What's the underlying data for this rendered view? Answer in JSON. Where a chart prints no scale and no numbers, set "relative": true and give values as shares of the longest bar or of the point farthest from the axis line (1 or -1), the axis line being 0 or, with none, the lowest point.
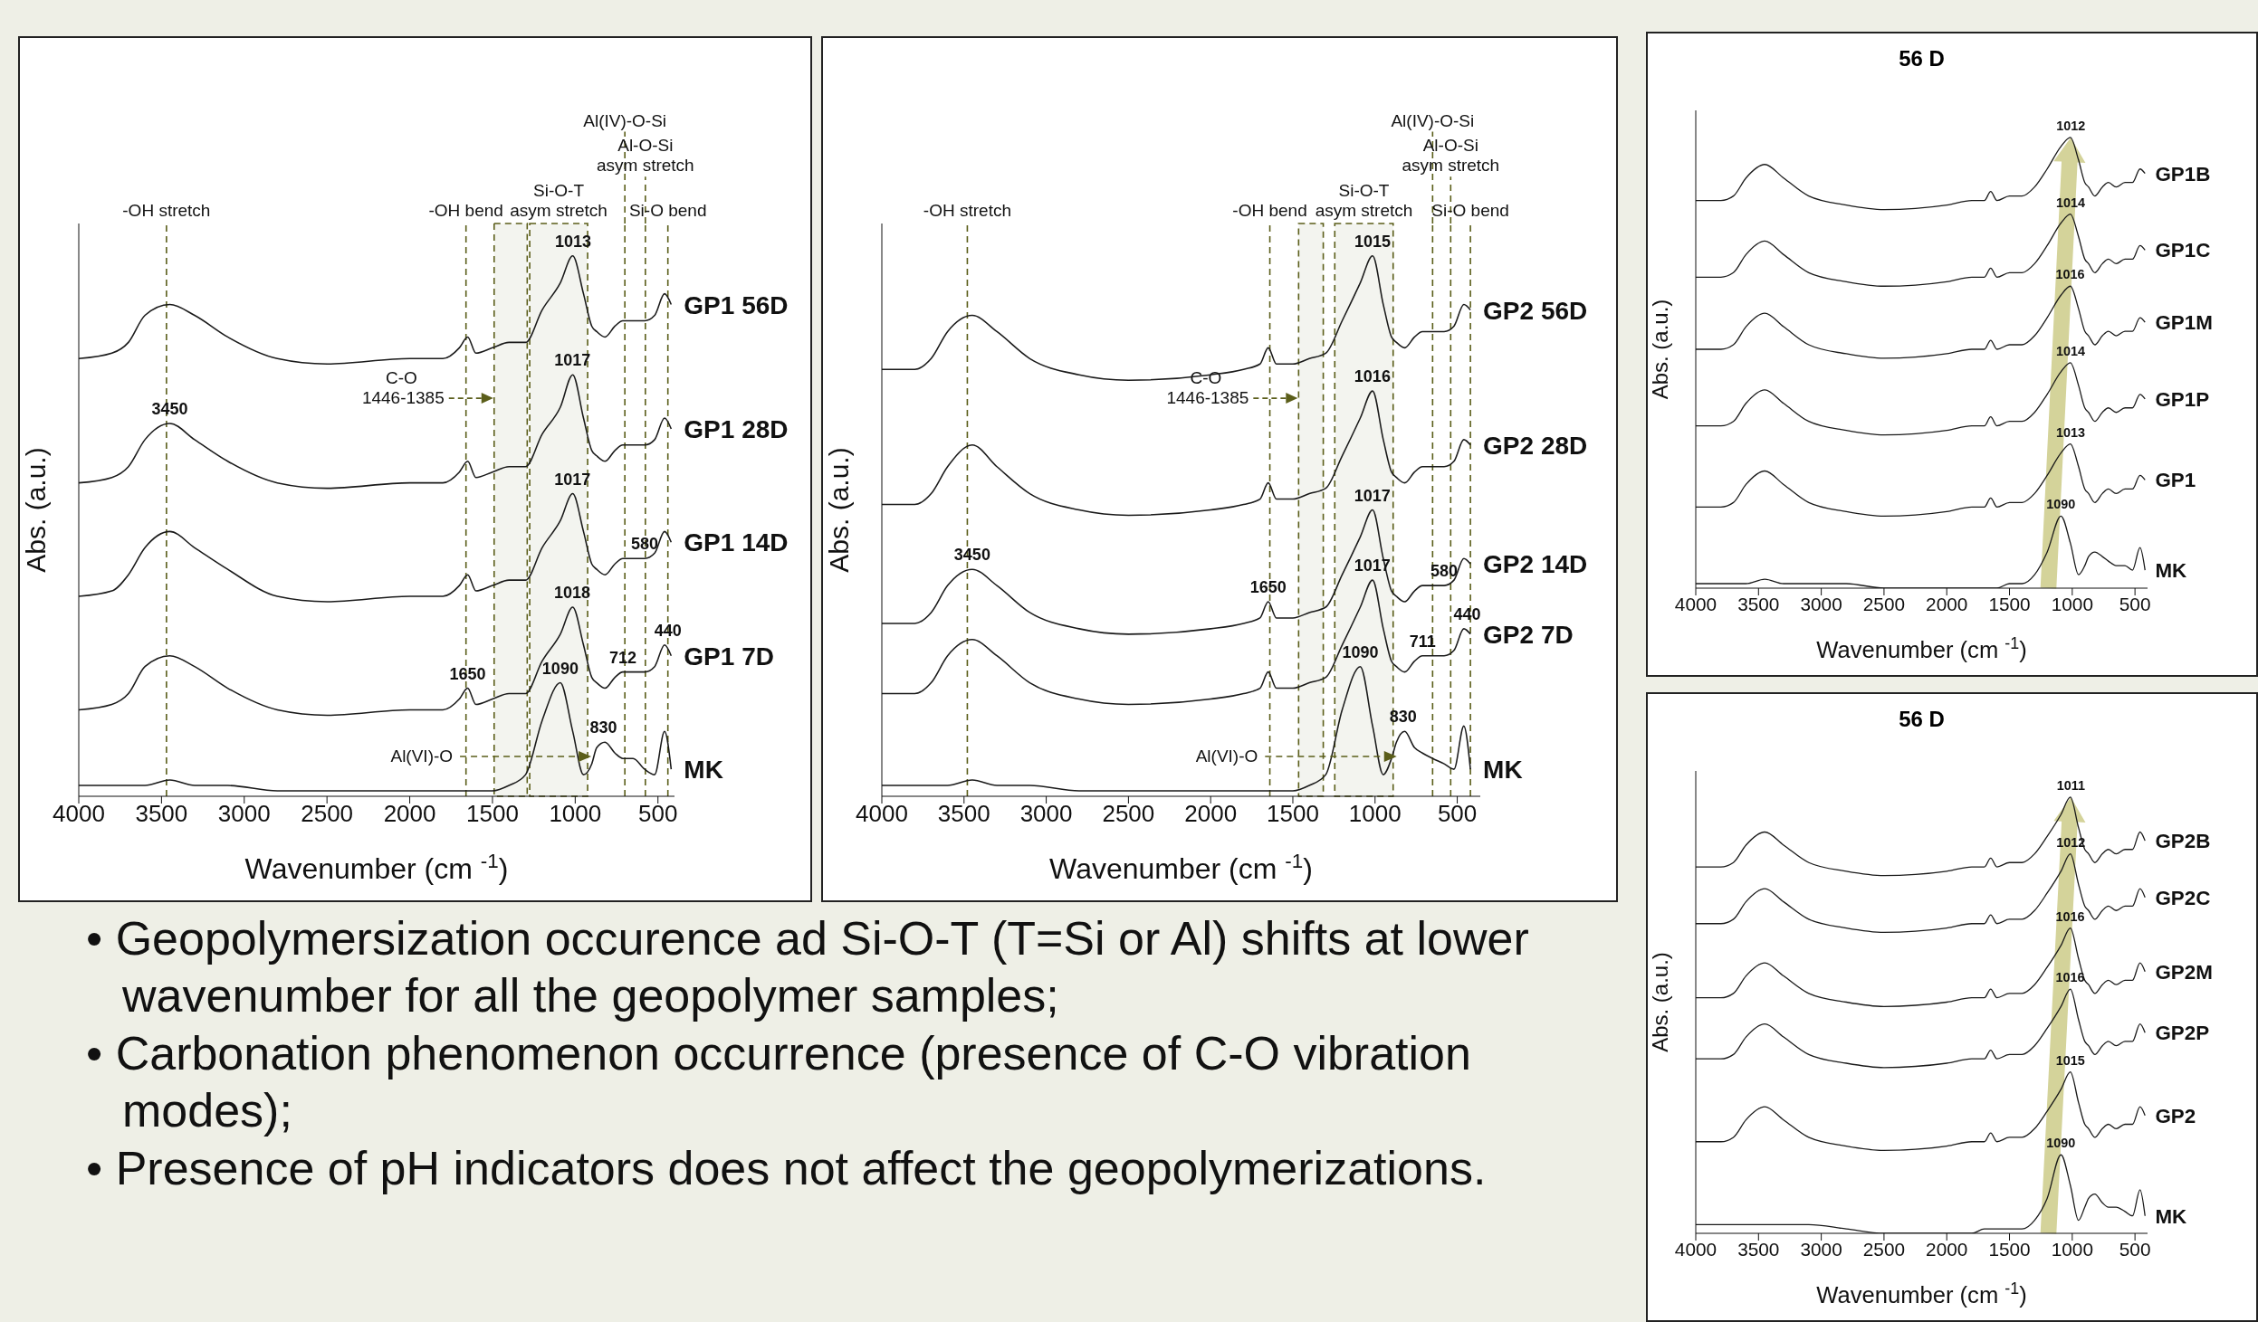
{
  "chart_data": [
    {
      "type": "line",
      "relative": true,
      "xlabel": "Wavenumber (cm $^{-1}$)",
      "ylabel": "Abs. (a.u.)",
      "xlim": [
        4000,
        400
      ],
      "xticks": [
        4000,
        3500,
        3000,
        2500,
        2000,
        1500,
        1000,
        500
      ],
      "x": [
        4000,
        3800,
        3700,
        3600,
        3450,
        3300,
        3100,
        2800,
        2500,
        2000,
        1800,
        1700,
        1650,
        1600,
        1500,
        1400,
        1300,
        1200,
        1090,
        1015,
        950,
        900,
        870,
        820,
        760,
        712,
        650,
        580,
        520,
        460,
        420
      ],
      "series": [
        {
          "name": "GP1 56D",
          "color": "#1a1a1a",
          "values": [
            0.81,
            0.82,
            0.84,
            0.89,
            0.91,
            0.89,
            0.85,
            0.81,
            0.8,
            0.81,
            0.81,
            0.83,
            0.85,
            0.82,
            0.83,
            0.84,
            0.84,
            0.9,
            0.95,
            1.0,
            0.93,
            0.87,
            0.86,
            0.85,
            0.87,
            0.88,
            0.88,
            0.88,
            0.89,
            0.93,
            0.91
          ]
        },
        {
          "name": "GP1 28D",
          "color": "#1a1a1a",
          "values": [
            0.58,
            0.59,
            0.61,
            0.66,
            0.69,
            0.66,
            0.62,
            0.58,
            0.57,
            0.58,
            0.58,
            0.6,
            0.62,
            0.59,
            0.6,
            0.61,
            0.61,
            0.67,
            0.72,
            0.78,
            0.7,
            0.64,
            0.63,
            0.62,
            0.64,
            0.65,
            0.65,
            0.65,
            0.66,
            0.7,
            0.68
          ]
        },
        {
          "name": "GP1 14D",
          "color": "#1a1a1a",
          "values": [
            0.37,
            0.38,
            0.41,
            0.46,
            0.49,
            0.46,
            0.42,
            0.37,
            0.36,
            0.37,
            0.37,
            0.39,
            0.41,
            0.38,
            0.39,
            0.4,
            0.4,
            0.46,
            0.51,
            0.56,
            0.49,
            0.43,
            0.42,
            0.41,
            0.43,
            0.44,
            0.44,
            0.44,
            0.45,
            0.49,
            0.47
          ]
        },
        {
          "name": "GP1 7D",
          "color": "#1a1a1a",
          "values": [
            0.16,
            0.17,
            0.19,
            0.24,
            0.26,
            0.24,
            0.2,
            0.16,
            0.15,
            0.16,
            0.16,
            0.18,
            0.2,
            0.17,
            0.18,
            0.19,
            0.19,
            0.25,
            0.3,
            0.35,
            0.28,
            0.22,
            0.21,
            0.2,
            0.22,
            0.23,
            0.23,
            0.23,
            0.24,
            0.28,
            0.26
          ]
        },
        {
          "name": "MK",
          "color": "#1a1a1a",
          "values": [
            0.02,
            0.02,
            0.02,
            0.02,
            0.03,
            0.02,
            0.02,
            0.01,
            0.01,
            0.01,
            0.01,
            0.01,
            0.01,
            0.01,
            0.01,
            0.02,
            0.04,
            0.14,
            0.21,
            0.12,
            0.04,
            0.06,
            0.09,
            0.1,
            0.08,
            0.07,
            0.07,
            0.05,
            0.04,
            0.12,
            0.05
          ]
        }
      ],
      "ref_lines": [
        {
          "axis": "x",
          "value": 3470,
          "label": "-OH stretch",
          "color": "#5b5e1a",
          "line_style": "dashed"
        },
        {
          "axis": "x",
          "value": 1660,
          "label": "-OH bend",
          "color": "#5b5e1a",
          "line_style": "dashed"
        },
        {
          "axis": "x",
          "value": 700,
          "label": "Al(IV)-O-Si",
          "color": "#5b5e1a",
          "line_style": "dashed"
        },
        {
          "axis": "x",
          "value": 576,
          "label": "Al-O-Si asym stretch",
          "color": "#5b5e1a",
          "line_style": "dashed"
        },
        {
          "axis": "x",
          "value": 440,
          "label": "Si-O bend",
          "color": "#5b5e1a",
          "line_style": "dashed"
        }
      ],
      "bands": [
        {
          "axis": "x",
          "from": 1275,
          "to": 925,
          "label": "Si-O-T asym stretch",
          "color": "#5b5e1a"
        },
        {
          "axis": "x",
          "from": 1490,
          "to": 1290,
          "label": "C-O 1446-1385",
          "color": "#5b5e1a"
        }
      ],
      "annotations": [
        {
          "text": "1013",
          "x": 1013,
          "y": 1.0
        },
        {
          "text": "1017",
          "x": 1017,
          "y": 0.78
        },
        {
          "text": "1017",
          "x": 1017,
          "y": 0.56
        },
        {
          "text": "1018",
          "x": 1018,
          "y": 0.35
        },
        {
          "text": "3450",
          "x": 3450,
          "y": 0.69
        },
        {
          "text": "1650",
          "x": 1650,
          "y": 0.2
        },
        {
          "text": "580",
          "x": 580,
          "y": 0.44
        },
        {
          "text": "712",
          "x": 712,
          "y": 0.23
        },
        {
          "text": "440",
          "x": 440,
          "y": 0.28
        },
        {
          "text": "1090",
          "x": 1090,
          "y": 0.21
        },
        {
          "text": "830",
          "x": 830,
          "y": 0.1
        },
        "Al(VI)-O"
      ]
    },
    {
      "type": "line",
      "relative": true,
      "xlabel": "Wavenumber (cm $^{-1}$)",
      "ylabel": "Abs. (a.u.)",
      "xlim": [
        4000,
        360
      ],
      "xticks": [
        4000,
        3500,
        3000,
        2500,
        2000,
        1500,
        1000,
        500
      ],
      "x": [
        4000,
        3800,
        3700,
        3600,
        3450,
        3300,
        3100,
        2800,
        2500,
        2000,
        1800,
        1700,
        1650,
        1600,
        1500,
        1400,
        1300,
        1200,
        1090,
        1015,
        950,
        900,
        870,
        820,
        760,
        712,
        650,
        580,
        520,
        460,
        420
      ],
      "series": [
        {
          "name": "GP2 56D",
          "color": "#1a1a1a",
          "values": [
            0.79,
            0.79,
            0.81,
            0.86,
            0.89,
            0.86,
            0.81,
            0.78,
            0.77,
            0.78,
            0.79,
            0.8,
            0.83,
            0.8,
            0.8,
            0.81,
            0.82,
            0.88,
            0.95,
            1.0,
            0.91,
            0.85,
            0.84,
            0.83,
            0.85,
            0.86,
            0.86,
            0.86,
            0.87,
            0.91,
            0.9
          ]
        },
        {
          "name": "GP2 28D",
          "color": "#1a1a1a",
          "values": [
            0.54,
            0.54,
            0.56,
            0.61,
            0.65,
            0.61,
            0.56,
            0.53,
            0.52,
            0.53,
            0.54,
            0.55,
            0.58,
            0.55,
            0.55,
            0.56,
            0.57,
            0.63,
            0.7,
            0.75,
            0.66,
            0.6,
            0.59,
            0.58,
            0.6,
            0.61,
            0.61,
            0.61,
            0.62,
            0.66,
            0.65
          ]
        },
        {
          "name": "GP2 14D",
          "color": "#1a1a1a",
          "values": [
            0.32,
            0.32,
            0.34,
            0.39,
            0.42,
            0.39,
            0.34,
            0.31,
            0.3,
            0.31,
            0.32,
            0.33,
            0.36,
            0.33,
            0.33,
            0.34,
            0.35,
            0.41,
            0.48,
            0.53,
            0.44,
            0.38,
            0.37,
            0.36,
            0.38,
            0.39,
            0.39,
            0.39,
            0.4,
            0.44,
            0.43
          ]
        },
        {
          "name": "GP2 7D",
          "color": "#1a1a1a",
          "values": [
            0.19,
            0.19,
            0.21,
            0.26,
            0.29,
            0.26,
            0.21,
            0.18,
            0.17,
            0.18,
            0.19,
            0.2,
            0.23,
            0.2,
            0.2,
            0.21,
            0.22,
            0.28,
            0.35,
            0.4,
            0.31,
            0.25,
            0.24,
            0.23,
            0.25,
            0.26,
            0.26,
            0.26,
            0.27,
            0.31,
            0.3
          ]
        },
        {
          "name": "MK",
          "color": "#1a1a1a",
          "values": [
            0.02,
            0.02,
            0.02,
            0.02,
            0.03,
            0.02,
            0.02,
            0.01,
            0.01,
            0.01,
            0.01,
            0.01,
            0.01,
            0.01,
            0.01,
            0.02,
            0.04,
            0.16,
            0.24,
            0.13,
            0.04,
            0.07,
            0.1,
            0.12,
            0.09,
            0.08,
            0.07,
            0.06,
            0.05,
            0.13,
            0.05
          ]
        }
      ],
      "ref_lines": [
        {
          "axis": "x",
          "value": 3480,
          "label": "-OH stretch",
          "color": "#5b5e1a",
          "line_style": "dashed"
        },
        {
          "axis": "x",
          "value": 1640,
          "label": "-OH bend",
          "color": "#5b5e1a",
          "line_style": "dashed"
        },
        {
          "axis": "x",
          "value": 650,
          "label": "Al(IV)-O-Si",
          "color": "#5b5e1a",
          "line_style": "dashed"
        },
        {
          "axis": "x",
          "value": 540,
          "label": "Al-O-Si asym stretch",
          "color": "#5b5e1a",
          "line_style": "dashed"
        },
        {
          "axis": "x",
          "value": 420,
          "label": "Si-O bend",
          "color": "#5b5e1a",
          "line_style": "dashed"
        }
      ],
      "bands": [
        {
          "axis": "x",
          "from": 1245,
          "to": 890,
          "label": "Si-O-T asym stretch",
          "color": "#5b5e1a"
        },
        {
          "axis": "x",
          "from": 1465,
          "to": 1315,
          "label": "C-O 1446-1385",
          "color": "#5b5e1a"
        }
      ],
      "annotations": [
        {
          "text": "1015",
          "x": 1015,
          "y": 1.0
        },
        {
          "text": "1016",
          "x": 1016,
          "y": 0.75
        },
        {
          "text": "1017",
          "x": 1017,
          "y": 0.53
        },
        {
          "text": "1017",
          "x": 1017,
          "y": 0.4
        },
        {
          "text": "3450",
          "x": 3450,
          "y": 0.42
        },
        {
          "text": "1650",
          "x": 1650,
          "y": 0.36
        },
        {
          "text": "580",
          "x": 580,
          "y": 0.39
        },
        {
          "text": "711",
          "x": 711,
          "y": 0.26
        },
        {
          "text": "440",
          "x": 440,
          "y": 0.31
        },
        {
          "text": "1090",
          "x": 1090,
          "y": 0.24
        },
        {
          "text": "830",
          "x": 830,
          "y": 0.12
        },
        "Al(VI)-O"
      ]
    },
    {
      "type": "line",
      "relative": true,
      "title": "56 D",
      "xlabel": "Wavenumber (cm $^{-1}$)",
      "ylabel": "Abs. (a.u.)",
      "xlim": [
        4000,
        400
      ],
      "xticks": [
        4000,
        3500,
        3000,
        2500,
        2000,
        1500,
        1000,
        500
      ],
      "x": [
        4000,
        3800,
        3700,
        3600,
        3450,
        3300,
        3100,
        2800,
        2500,
        2000,
        1800,
        1700,
        1650,
        1600,
        1500,
        1400,
        1300,
        1200,
        1090,
        1015,
        950,
        900,
        870,
        820,
        760,
        712,
        650,
        580,
        520,
        460,
        420
      ],
      "series": [
        {
          "name": "GP1B",
          "color": "#1a1a1a",
          "values": [
            0.86,
            0.86,
            0.87,
            0.91,
            0.94,
            0.91,
            0.87,
            0.85,
            0.84,
            0.85,
            0.86,
            0.86,
            0.88,
            0.86,
            0.87,
            0.87,
            0.89,
            0.93,
            0.98,
            1.0,
            0.95,
            0.9,
            0.89,
            0.87,
            0.89,
            0.9,
            0.89,
            0.9,
            0.9,
            0.93,
            0.92
          ]
        },
        {
          "name": "GP1C",
          "color": "#1a1a1a",
          "values": [
            0.69,
            0.69,
            0.7,
            0.74,
            0.77,
            0.74,
            0.7,
            0.68,
            0.67,
            0.68,
            0.69,
            0.69,
            0.71,
            0.69,
            0.7,
            0.7,
            0.72,
            0.76,
            0.81,
            0.83,
            0.78,
            0.73,
            0.72,
            0.7,
            0.72,
            0.73,
            0.72,
            0.73,
            0.73,
            0.76,
            0.75
          ]
        },
        {
          "name": "GP1M",
          "color": "#1a1a1a",
          "values": [
            0.53,
            0.53,
            0.54,
            0.58,
            0.61,
            0.58,
            0.54,
            0.52,
            0.51,
            0.52,
            0.53,
            0.53,
            0.55,
            0.53,
            0.54,
            0.54,
            0.56,
            0.6,
            0.65,
            0.67,
            0.62,
            0.57,
            0.56,
            0.54,
            0.56,
            0.57,
            0.56,
            0.57,
            0.57,
            0.6,
            0.59
          ]
        },
        {
          "name": "GP1P",
          "color": "#1a1a1a",
          "values": [
            0.36,
            0.36,
            0.37,
            0.41,
            0.44,
            0.41,
            0.37,
            0.35,
            0.34,
            0.35,
            0.36,
            0.36,
            0.38,
            0.36,
            0.37,
            0.37,
            0.39,
            0.43,
            0.48,
            0.5,
            0.45,
            0.4,
            0.39,
            0.37,
            0.39,
            0.4,
            0.39,
            0.4,
            0.4,
            0.43,
            0.42
          ]
        },
        {
          "name": "GP1",
          "color": "#1a1a1a",
          "values": [
            0.18,
            0.18,
            0.19,
            0.23,
            0.26,
            0.23,
            0.19,
            0.17,
            0.16,
            0.17,
            0.18,
            0.18,
            0.2,
            0.18,
            0.19,
            0.19,
            0.21,
            0.25,
            0.3,
            0.32,
            0.27,
            0.22,
            0.21,
            0.19,
            0.21,
            0.22,
            0.21,
            0.22,
            0.22,
            0.25,
            0.24
          ]
        },
        {
          "name": "MK",
          "color": "#1a1a1a",
          "values": [
            0.01,
            0.01,
            0.01,
            0.01,
            0.02,
            0.01,
            0.01,
            0.01,
            0.0,
            0.0,
            0.0,
            0.0,
            0.0,
            0.0,
            0.01,
            0.01,
            0.03,
            0.08,
            0.16,
            0.1,
            0.03,
            0.05,
            0.07,
            0.08,
            0.07,
            0.06,
            0.05,
            0.05,
            0.04,
            0.09,
            0.04
          ]
        }
      ],
      "annotations": [
        {
          "text": "1012",
          "x": 1012,
          "y": 1.0
        },
        {
          "text": "1014",
          "x": 1014,
          "y": 0.83
        },
        {
          "text": "1016",
          "x": 1016,
          "y": 0.67
        },
        {
          "text": "1014",
          "x": 1014,
          "y": 0.5
        },
        {
          "text": "1013",
          "x": 1013,
          "y": 0.32
        },
        {
          "text": "1090",
          "x": 1090,
          "y": 0.16
        }
      ]
    },
    {
      "type": "line",
      "relative": true,
      "title": "56 D",
      "xlabel": "Wavenumber (cm $^{-1}$)",
      "ylabel": "Abs. (a.u.)",
      "xlim": [
        4000,
        400
      ],
      "xticks": [
        4000,
        3500,
        3000,
        2500,
        2000,
        1500,
        1000,
        500
      ],
      "x": [
        4000,
        3800,
        3700,
        3600,
        3450,
        3300,
        3100,
        2800,
        2500,
        2000,
        1800,
        1700,
        1650,
        1600,
        1500,
        1400,
        1300,
        1200,
        1090,
        1015,
        950,
        900,
        870,
        820,
        760,
        712,
        650,
        580,
        520,
        460,
        420
      ],
      "series": [
        {
          "name": "GP2B",
          "color": "#1a1a1a",
          "values": [
            0.84,
            0.84,
            0.85,
            0.89,
            0.92,
            0.89,
            0.85,
            0.83,
            0.82,
            0.83,
            0.84,
            0.84,
            0.86,
            0.84,
            0.85,
            0.85,
            0.87,
            0.91,
            0.96,
            1.0,
            0.93,
            0.88,
            0.87,
            0.85,
            0.87,
            0.88,
            0.87,
            0.88,
            0.88,
            0.92,
            0.9
          ]
        },
        {
          "name": "GP2C",
          "color": "#1a1a1a",
          "values": [
            0.71,
            0.71,
            0.72,
            0.76,
            0.79,
            0.76,
            0.72,
            0.7,
            0.69,
            0.7,
            0.71,
            0.71,
            0.73,
            0.71,
            0.72,
            0.72,
            0.74,
            0.78,
            0.83,
            0.87,
            0.8,
            0.75,
            0.74,
            0.72,
            0.74,
            0.75,
            0.74,
            0.75,
            0.75,
            0.79,
            0.77
          ]
        },
        {
          "name": "GP2M",
          "color": "#1a1a1a",
          "values": [
            0.54,
            0.54,
            0.55,
            0.59,
            0.62,
            0.59,
            0.55,
            0.53,
            0.52,
            0.53,
            0.54,
            0.54,
            0.56,
            0.54,
            0.55,
            0.55,
            0.57,
            0.61,
            0.66,
            0.7,
            0.63,
            0.58,
            0.57,
            0.55,
            0.57,
            0.58,
            0.57,
            0.58,
            0.58,
            0.62,
            0.6
          ]
        },
        {
          "name": "GP2P",
          "color": "#1a1a1a",
          "values": [
            0.4,
            0.4,
            0.41,
            0.45,
            0.48,
            0.45,
            0.41,
            0.39,
            0.38,
            0.39,
            0.4,
            0.4,
            0.42,
            0.4,
            0.41,
            0.41,
            0.43,
            0.47,
            0.52,
            0.56,
            0.49,
            0.44,
            0.43,
            0.41,
            0.43,
            0.44,
            0.43,
            0.44,
            0.44,
            0.48,
            0.46
          ]
        },
        {
          "name": "GP2",
          "color": "#1a1a1a",
          "values": [
            0.21,
            0.21,
            0.22,
            0.26,
            0.29,
            0.26,
            0.22,
            0.2,
            0.19,
            0.2,
            0.21,
            0.21,
            0.23,
            0.21,
            0.22,
            0.22,
            0.24,
            0.28,
            0.33,
            0.37,
            0.3,
            0.25,
            0.24,
            0.22,
            0.24,
            0.25,
            0.24,
            0.25,
            0.25,
            0.29,
            0.27
          ]
        },
        {
          "name": "MK",
          "color": "#1a1a1a",
          "values": [
            0.02,
            0.02,
            0.02,
            0.02,
            0.02,
            0.02,
            0.02,
            0.01,
            0.0,
            0.0,
            0.0,
            0.01,
            0.01,
            0.01,
            0.01,
            0.01,
            0.03,
            0.08,
            0.18,
            0.11,
            0.03,
            0.06,
            0.08,
            0.09,
            0.07,
            0.06,
            0.06,
            0.05,
            0.04,
            0.1,
            0.04
          ]
        }
      ],
      "annotations": [
        {
          "text": "1011",
          "x": 1011,
          "y": 1.0
        },
        {
          "text": "1012",
          "x": 1012,
          "y": 0.87
        },
        {
          "text": "1016",
          "x": 1016,
          "y": 0.7
        },
        {
          "text": "1016",
          "x": 1016,
          "y": 0.56
        },
        {
          "text": "1015",
          "x": 1015,
          "y": 0.37
        },
        {
          "text": "1090",
          "x": 1090,
          "y": 0.18
        }
      ]
    },
    {
      "type": "other",
      "annotations": [
        "• Geopolymersization occurence ad Si-O-T (T=Si or Al) shifts at lower wavenumber for all the geopolymer samples;",
        "• Carbonation phenomenon occurrence (presence of C-O vibration modes);",
        "• Presence of pH indicators does not affect the geopolymerizations."
      ]
    }
  ]
}
